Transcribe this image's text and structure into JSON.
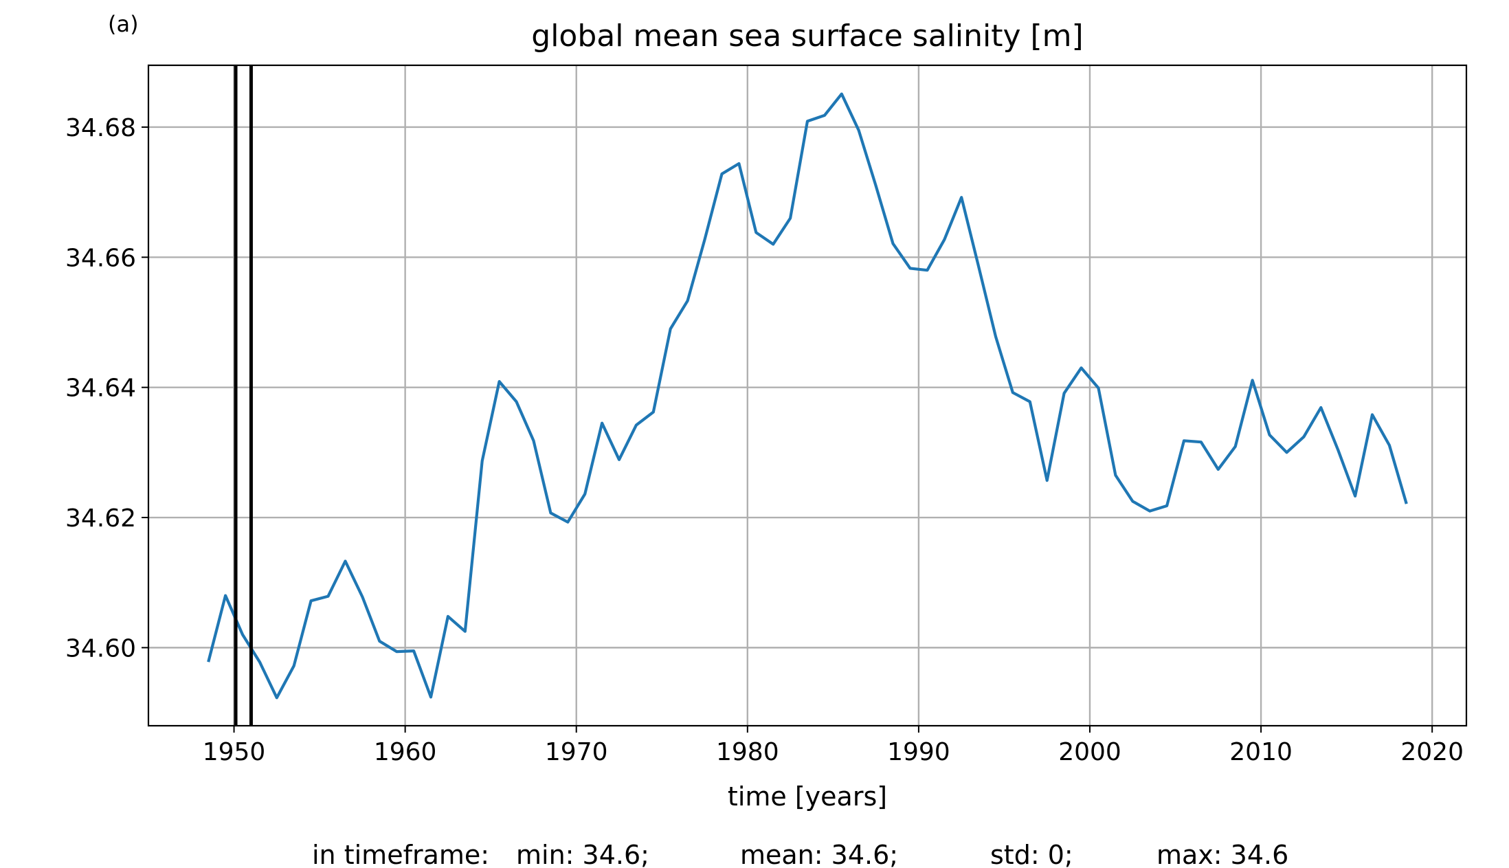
{
  "panel_label": "(a)",
  "summary": {
    "prefix": "in timeframe:",
    "min": "min: 34.6;",
    "mean": "mean: 34.6;",
    "std": "std: 0;",
    "max": "max: 34.6"
  },
  "chart_data": {
    "type": "line",
    "title": "global mean sea surface salinity [m]",
    "xlabel": "time [years]",
    "ylabel": "",
    "xlim": [
      1945,
      2022
    ],
    "ylim": [
      34.588,
      34.6895
    ],
    "x_ticks": [
      1950,
      1960,
      1970,
      1980,
      1990,
      2000,
      2010,
      2020
    ],
    "y_ticks": [
      34.6,
      34.62,
      34.64,
      34.66,
      34.68
    ],
    "y_tick_labels": [
      "34.60",
      "34.62",
      "34.64",
      "34.66",
      "34.68"
    ],
    "grid": true,
    "colors": {
      "series": "#1f77b4",
      "grid": "#b0b0b0",
      "markers": "#000000"
    },
    "vertical_lines": [
      1950.1,
      1951.0
    ],
    "series": [
      {
        "x": [
          1948.5,
          1949.5,
          1950.5,
          1951.5,
          1952.5,
          1953.5,
          1954.5,
          1955.5,
          1956.5,
          1957.5,
          1958.5,
          1959.5,
          1960.5,
          1961.5,
          1962.5,
          1963.5,
          1964.5,
          1965.5,
          1966.5,
          1967.5,
          1968.5,
          1969.5,
          1970.5,
          1971.5,
          1972.5,
          1973.5,
          1974.5,
          1975.5,
          1976.5,
          1977.5,
          1978.5,
          1979.5,
          1980.5,
          1981.5,
          1982.5,
          1983.5,
          1984.5,
          1985.5,
          1986.5,
          1987.5,
          1988.5,
          1989.5,
          1990.5,
          1991.5,
          1992.5,
          1993.5,
          1994.5,
          1995.5,
          1996.5,
          1997.5,
          1998.5,
          1999.5,
          2000.5,
          2001.5,
          2002.5,
          2003.5,
          2004.5,
          2005.5,
          2006.5,
          2007.5,
          2008.5,
          2009.5,
          2010.5,
          2011.5,
          2012.5,
          2013.5,
          2014.5,
          2015.5,
          2016.5,
          2017.5,
          2018.5
        ],
        "values": [
          34.5978,
          34.608,
          34.602,
          34.5978,
          34.5923,
          34.5972,
          34.6072,
          34.6079,
          34.6133,
          34.6078,
          34.601,
          34.5994,
          34.5995,
          34.5924,
          34.6048,
          34.6025,
          34.6287,
          34.6409,
          34.6378,
          34.6318,
          34.6207,
          34.6193,
          34.6236,
          34.6345,
          34.6289,
          34.6342,
          34.6362,
          34.649,
          34.6533,
          34.6627,
          34.6728,
          34.6744,
          34.6638,
          34.662,
          34.666,
          34.6809,
          34.6818,
          34.6851,
          34.6795,
          34.671,
          34.6621,
          34.6583,
          34.658,
          34.6627,
          34.6692,
          34.6586,
          34.6478,
          34.6392,
          34.6378,
          34.6257,
          34.6391,
          34.643,
          34.6399,
          34.6265,
          34.6225,
          34.621,
          34.6218,
          34.6318,
          34.6316,
          34.6274,
          34.6309,
          34.6411,
          34.6327,
          34.63,
          34.6324,
          34.6369,
          34.6304,
          34.6233,
          34.6358,
          34.6311,
          34.6221
        ]
      }
    ]
  }
}
